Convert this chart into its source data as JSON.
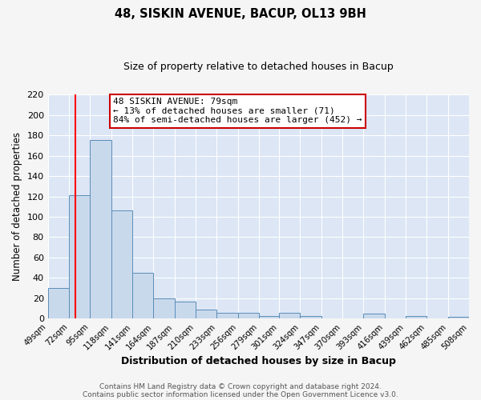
{
  "title": "48, SISKIN AVENUE, BACUP, OL13 9BH",
  "subtitle": "Size of property relative to detached houses in Bacup",
  "xlabel": "Distribution of detached houses by size in Bacup",
  "ylabel": "Number of detached properties",
  "bin_edges": [
    49,
    72,
    95,
    118,
    141,
    164,
    187,
    210,
    233,
    256,
    279,
    301,
    324,
    347,
    370,
    393,
    416,
    439,
    462,
    485,
    508
  ],
  "bar_heights": [
    30,
    121,
    175,
    106,
    45,
    20,
    17,
    9,
    6,
    6,
    3,
    6,
    3,
    0,
    0,
    5,
    0,
    3,
    0,
    2
  ],
  "bar_color": "#c9d9ec",
  "bar_edge_color": "#5b8db8",
  "red_line_x": 79,
  "ylim": [
    0,
    220
  ],
  "yticks": [
    0,
    20,
    40,
    60,
    80,
    100,
    120,
    140,
    160,
    180,
    200,
    220
  ],
  "annotation_title": "48 SISKIN AVENUE: 79sqm",
  "annotation_line1": "← 13% of detached houses are smaller (71)",
  "annotation_line2": "84% of semi-detached houses are larger (452) →",
  "annotation_box_color": "#ffffff",
  "annotation_box_edge": "#cc0000",
  "footer1": "Contains HM Land Registry data © Crown copyright and database right 2024.",
  "footer2": "Contains public sector information licensed under the Open Government Licence v3.0.",
  "plot_bg_color": "#dce6f5",
  "fig_bg_color": "#f5f5f5",
  "grid_color": "#ffffff"
}
